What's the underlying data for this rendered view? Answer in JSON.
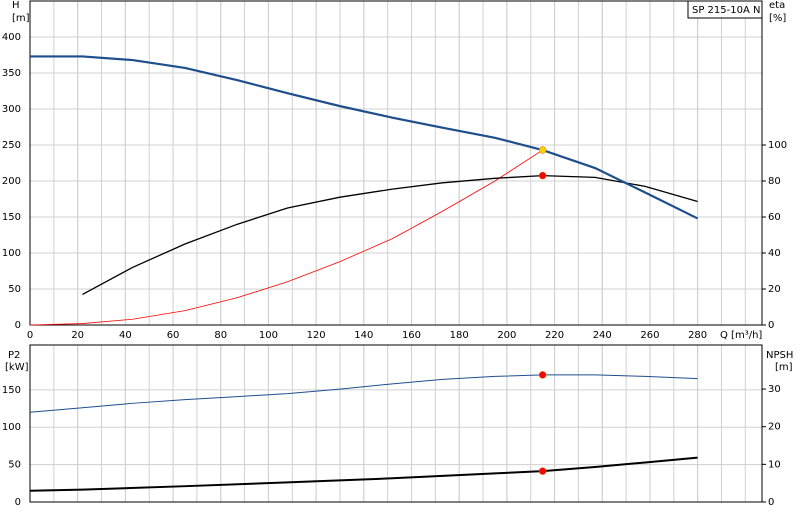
{
  "chart_data": [
    {
      "type": "line",
      "label_box": "SP 215-10A N",
      "xlabel": "Q [m³/h]",
      "ylabel": [
        "H",
        "[m]"
      ],
      "y2label": [
        "eta",
        "[%]"
      ],
      "xlim": [
        0,
        307
      ],
      "xticks": [
        0,
        20,
        40,
        60,
        80,
        100,
        120,
        140,
        160,
        180,
        200,
        220,
        240,
        260,
        280
      ],
      "xminor_step": 10,
      "xtick_labels": true,
      "ylim": [
        0,
        450
      ],
      "yticks": [
        0,
        50,
        100,
        150,
        200,
        250,
        300,
        350,
        400
      ],
      "y2lim": [
        0,
        180
      ],
      "y2ticks": [
        0,
        20,
        40,
        60,
        80,
        100
      ],
      "grid": true,
      "series": [
        {
          "color": "#ff0000",
          "line_width": 0.8,
          "x": [
            0,
            22,
            43,
            65,
            87,
            108,
            130,
            152,
            173,
            195,
            215
          ],
          "values": [
            0,
            2,
            8,
            20,
            38,
            60,
            88,
            120,
            158,
            200,
            243
          ]
        },
        {
          "color": "#000000",
          "line_width": 1.3,
          "axis": "y2",
          "x": [
            22,
            43,
            65,
            87,
            108,
            130,
            152,
            173,
            195,
            215,
            237,
            258,
            280
          ],
          "values": [
            17,
            32,
            45,
            56,
            65,
            71,
            75.5,
            79,
            81.5,
            83,
            82,
            77,
            68.6
          ]
        },
        {
          "color": "#1f4e8c",
          "line_width": 2.2,
          "x": [
            0,
            22,
            43,
            65,
            87,
            108,
            130,
            152,
            173,
            195,
            215,
            237,
            258,
            280
          ],
          "values": [
            373,
            373,
            368,
            357,
            340,
            322,
            304,
            288,
            274,
            260,
            243,
            218,
            184,
            148
          ]
        },
        {
          "color": "#ffcc00",
          "marker": true,
          "x": [
            215
          ],
          "values": [
            243
          ]
        },
        {
          "color": "#ff0000",
          "marker": true,
          "axis": "y2",
          "x": [
            215
          ],
          "values": [
            83
          ]
        }
      ]
    },
    {
      "type": "line",
      "ylabel": [
        "P2",
        "[kW]"
      ],
      "y2label": [
        "NPSH",
        "[m]"
      ],
      "xlim": [
        0,
        307
      ],
      "xticks": [
        0,
        20,
        40,
        60,
        80,
        100,
        120,
        140,
        160,
        180,
        200,
        220,
        240,
        260,
        280
      ],
      "xminor_step": 10,
      "xtick_labels": false,
      "ylim": [
        0,
        210
      ],
      "yticks": [
        0,
        50,
        100,
        150
      ],
      "y2lim": [
        0,
        41.7
      ],
      "y2ticks": [
        0,
        10,
        20,
        30
      ],
      "grid": true,
      "series": [
        {
          "color": "#1f4e8c",
          "line_width": 1,
          "x": [
            0,
            22,
            43,
            65,
            87,
            108,
            130,
            152,
            173,
            195,
            215,
            237,
            258,
            280
          ],
          "values": [
            120,
            126,
            132,
            137,
            141,
            145,
            151,
            158,
            164,
            168,
            170,
            170,
            168,
            165
          ]
        },
        {
          "color": "#000000",
          "line_width": 2,
          "axis": "y2",
          "x": [
            0,
            22,
            65,
            108,
            152,
            195,
            215,
            237,
            258,
            280
          ],
          "values": [
            3,
            3.3,
            4.2,
            5.2,
            6.3,
            7.6,
            8.2,
            9.3,
            10.5,
            11.8
          ]
        },
        {
          "color": "#ff0000",
          "marker": true,
          "x": [
            215
          ],
          "values": [
            170
          ]
        },
        {
          "color": "#ff0000",
          "marker": true,
          "axis": "y2",
          "x": [
            215
          ],
          "values": [
            8.2
          ]
        }
      ]
    }
  ]
}
